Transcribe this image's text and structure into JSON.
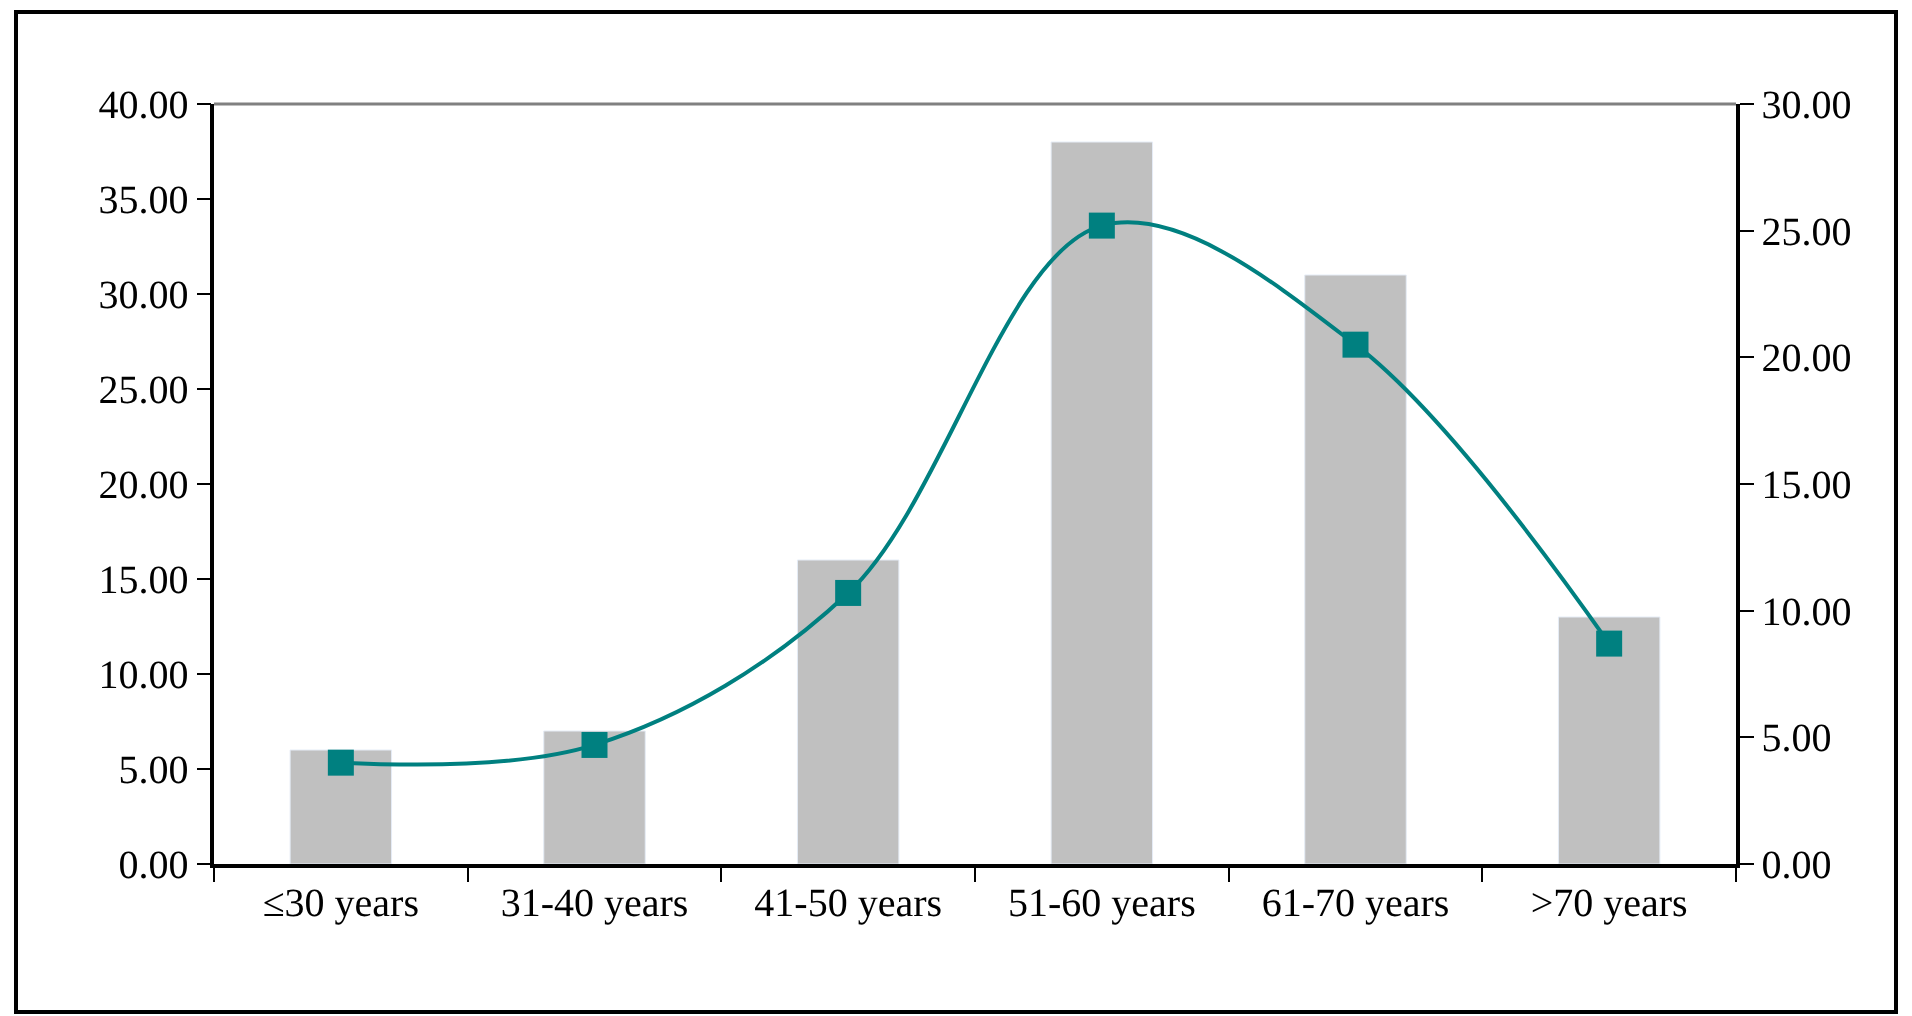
{
  "chart_data": {
    "type": "bar",
    "categories": [
      "≤30 years",
      "31-40 years",
      "41-50 years",
      "51-60 years",
      "61-70 years",
      ">70 years"
    ],
    "series": [
      {
        "color": "#c0c0c0",
        "values": [
          6.0,
          7.0,
          16.0,
          38.0,
          31.0,
          13.0
        ]
      },
      {
        "type": "line",
        "axis": "y2",
        "color": "#008080",
        "marker": "square",
        "values": [
          4.0,
          4.7,
          10.7,
          25.2,
          20.5,
          8.7
        ]
      }
    ],
    "ylim": [
      0,
      40
    ],
    "yticks": [
      {
        "value": 0,
        "label": "0.00"
      },
      {
        "value": 5,
        "label": "5.00"
      },
      {
        "value": 10,
        "label": "10.00"
      },
      {
        "value": 15,
        "label": "15.00"
      },
      {
        "value": 20,
        "label": "20.00"
      },
      {
        "value": 25,
        "label": "25.00"
      },
      {
        "value": 30,
        "label": "30.00"
      },
      {
        "value": 35,
        "label": "35.00"
      },
      {
        "value": 40,
        "label": "40.00"
      }
    ],
    "y2lim": [
      0,
      30
    ],
    "y2ticks": [
      {
        "value": 0,
        "label": "0.00"
      },
      {
        "value": 5,
        "label": "5.00"
      },
      {
        "value": 10,
        "label": "10.00"
      },
      {
        "value": 15,
        "label": "15.00"
      },
      {
        "value": 20,
        "label": "20.00"
      },
      {
        "value": 25,
        "label": "25.00"
      },
      {
        "value": 30,
        "label": "30.00"
      }
    ]
  }
}
